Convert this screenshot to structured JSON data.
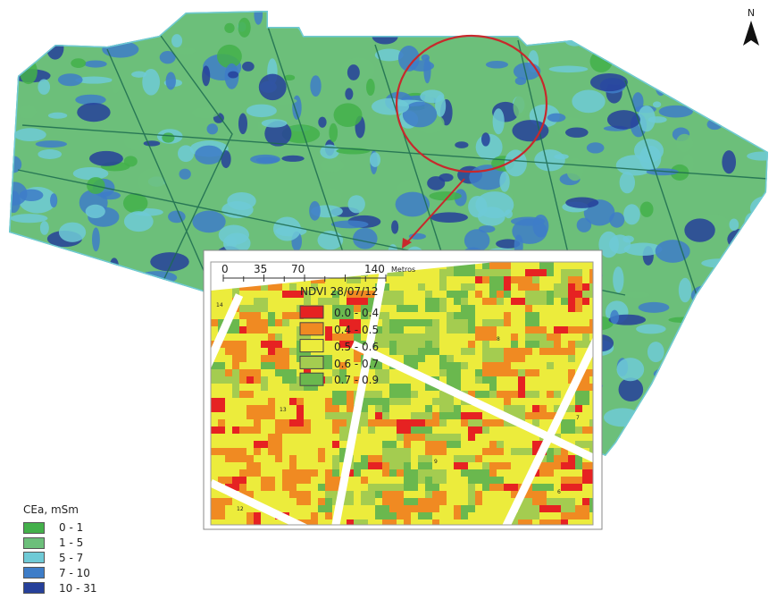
{
  "north_label": "N",
  "cea_legend": {
    "title": "CEa, mSm",
    "classes": [
      {
        "label": "0 - 1",
        "color": "#43b04a"
      },
      {
        "label": "1 - 5",
        "color": "#6cbf7a"
      },
      {
        "label": "5 - 7",
        "color": "#6fcad6"
      },
      {
        "label": "7 - 10",
        "color": "#3e7dc8"
      },
      {
        "label": "10 - 31",
        "color": "#26409a"
      }
    ]
  },
  "inset": {
    "scale_ticks": [
      "0",
      "35",
      "70",
      "140"
    ],
    "scale_unit": "Metros",
    "ndvi_title": "NDVI 28/07/12",
    "ndvi_classes": [
      {
        "label": "0.0 - 0.4",
        "color": "#e62222"
      },
      {
        "label": "0.4 - 0.5",
        "color": "#f08a22"
      },
      {
        "label": "0.5 - 0.6",
        "color": "#ecec3c"
      },
      {
        "label": "0.6 - 0.7",
        "color": "#a4cc50"
      },
      {
        "label": "0.7 - 0.9",
        "color": "#6ab84e"
      }
    ],
    "plot_labels": [
      "14",
      "13",
      "12",
      "9",
      "8",
      "7",
      "6"
    ]
  },
  "colors": {
    "highlight_circle": "#c8282c",
    "road_lines": "#1d6b4f"
  }
}
